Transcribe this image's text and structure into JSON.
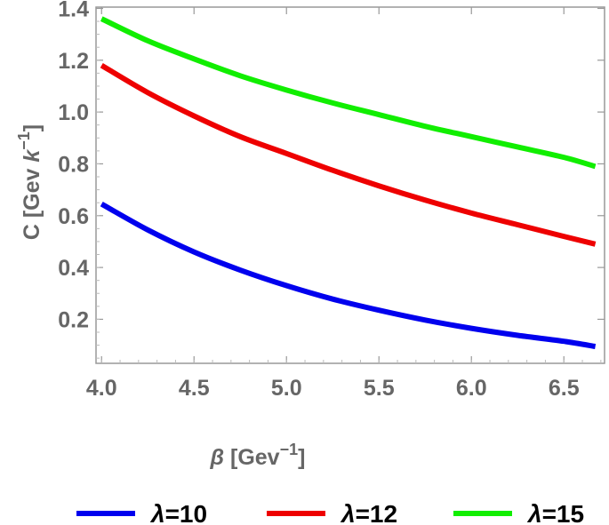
{
  "chart_data": {
    "type": "line",
    "title": "",
    "xlabel": {
      "symbol": "β",
      "unit_open": " [Gev",
      "unit_exp": "−1",
      "unit_close": "]"
    },
    "ylabel": {
      "prefix": "C [Gev ",
      "symbol": "k",
      "unit_exp": "−1",
      "unit_close": "]"
    },
    "xlim": [
      3.97,
      6.72
    ],
    "ylim": [
      0.03,
      1.405
    ],
    "xticks": [
      "4.0",
      "4.5",
      "5.0",
      "5.5",
      "6.0",
      "6.5"
    ],
    "xtick_values": [
      4.0,
      4.5,
      5.0,
      5.5,
      6.0,
      6.5
    ],
    "yticks": [
      "0.2",
      "0.4",
      "0.6",
      "0.8",
      "1.0",
      "1.2",
      "1.4"
    ],
    "ytick_values": [
      0.2,
      0.4,
      0.6,
      0.8,
      1.0,
      1.2,
      1.4
    ],
    "grid": false,
    "legend_position": "bottom",
    "x": [
      4.0,
      4.25,
      4.5,
      4.75,
      5.0,
      5.25,
      5.5,
      5.75,
      6.0,
      6.25,
      6.5,
      6.67
    ],
    "series": [
      {
        "name": "λ=10",
        "color": "#0000ee",
        "values": [
          0.645,
          0.545,
          0.46,
          0.39,
          0.33,
          0.278,
          0.235,
          0.197,
          0.165,
          0.138,
          0.115,
          0.095
        ]
      },
      {
        "name": "λ=12",
        "color": "#ee0000",
        "values": [
          1.18,
          1.075,
          0.985,
          0.905,
          0.84,
          0.775,
          0.715,
          0.66,
          0.61,
          0.565,
          0.52,
          0.49
        ]
      },
      {
        "name": "λ=15",
        "color": "#11ee00",
        "values": [
          1.36,
          1.275,
          1.205,
          1.14,
          1.085,
          1.035,
          0.99,
          0.945,
          0.905,
          0.865,
          0.825,
          0.79
        ]
      }
    ]
  }
}
